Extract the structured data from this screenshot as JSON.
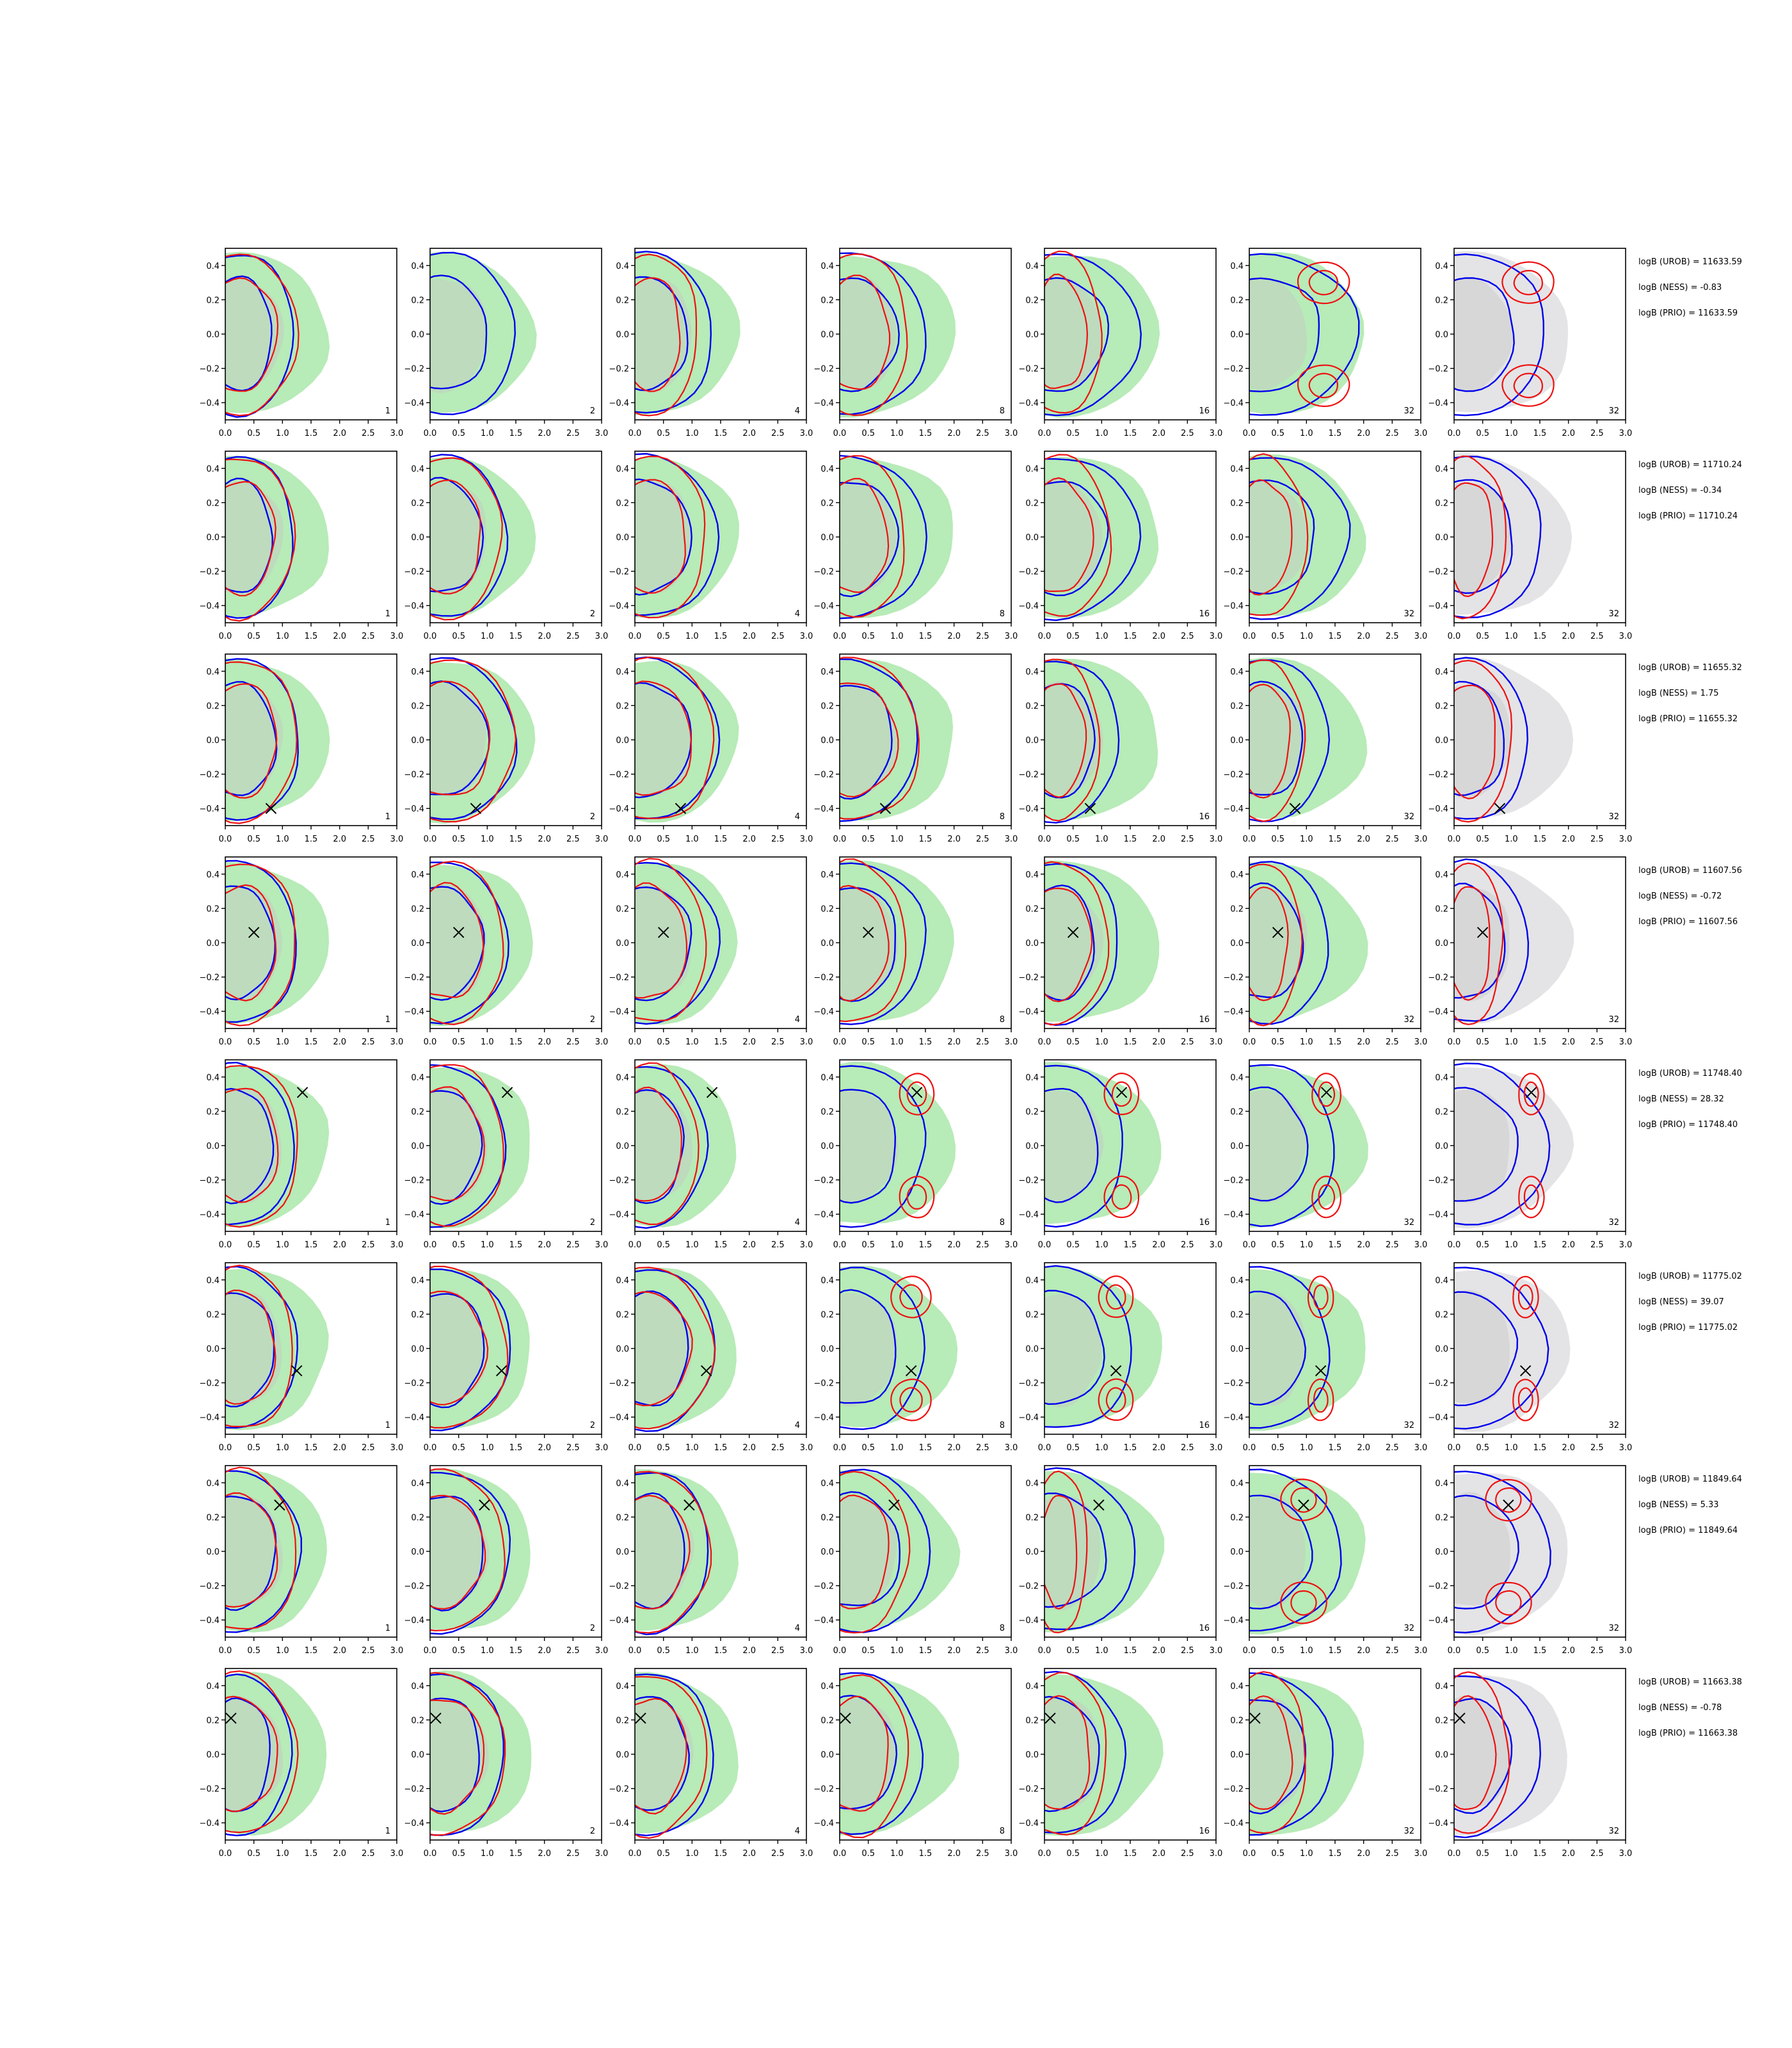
{
  "figure": {
    "rows": [
      {
        "logB_UROB": "logB (UROB) = 11633.59",
        "logB_NESS": "logB (NESS) = -0.83",
        "logB_PRIO": "logB (PRIO) = 11633.59"
      },
      {
        "logB_UROB": "logB (UROB) = 11710.24",
        "logB_NESS": "logB (NESS) = -0.34",
        "logB_PRIO": "logB (PRIO) = 11710.24"
      },
      {
        "logB_UROB": "logB (UROB) = 11655.32",
        "logB_NESS": "logB (NESS) = 1.75",
        "logB_PRIO": "logB (PRIO) = 11655.32"
      },
      {
        "logB_UROB": "logB (UROB) = 11607.56",
        "logB_NESS": "logB (NESS) = -0.72",
        "logB_PRIO": "logB (PRIO) = 11607.56"
      },
      {
        "logB_UROB": "logB (UROB) = 11748.40",
        "logB_NESS": "logB (NESS) = 28.32",
        "logB_PRIO": "logB (PRIO) = 11748.40"
      },
      {
        "logB_UROB": "logB (UROB) = 11775.02",
        "logB_NESS": "logB (NESS) = 39.07",
        "logB_PRIO": "logB (PRIO) = 11775.02"
      },
      {
        "logB_UROB": "logB (UROB) = 11849.64",
        "logB_NESS": "logB (NESS) = 5.33",
        "logB_PRIO": "logB (PRIO) = 11849.64"
      },
      {
        "logB_UROB": "logB (UROB) = 11663.38",
        "logB_NESS": "logB (NESS) = -0.78",
        "logB_PRIO": "logB (PRIO) = 11663.38"
      }
    ]
  },
  "chart_data": {
    "type": "contour",
    "grid": {
      "rows": 8,
      "cols": 7
    },
    "panel_labels": [
      "1",
      "2",
      "4",
      "8",
      "16",
      "32",
      "32"
    ],
    "xlim": [
      0.0,
      3.0
    ],
    "ylim": [
      -0.5,
      0.5
    ],
    "xticks": [
      "0.0",
      "0.5",
      "1.0",
      "1.5",
      "2.0",
      "2.5",
      "3.0"
    ],
    "yticks": [
      "0.4",
      "0.2",
      "0.0",
      "−0.2",
      "−0.4"
    ],
    "xlabel": "",
    "ylabel": "",
    "colors": {
      "green_fill": "#b7ebb7",
      "grey_fill": "#c8c8c8",
      "grey_panel_fill": "#e4e4e6",
      "blue": "#0000ee",
      "red": "#ee1111"
    },
    "markers": [
      null,
      null,
      {
        "x": 0.8,
        "y": -0.4
      },
      {
        "x": 0.5,
        "y": 0.06
      },
      {
        "x": 1.35,
        "y": 0.31
      },
      {
        "x": 1.25,
        "y": -0.13
      },
      {
        "x": 0.95,
        "y": 0.27
      },
      {
        "x": 0.1,
        "y": 0.21
      }
    ],
    "blue_rx": [
      [
        1.0,
        1.3,
        1.15,
        1.3,
        1.45,
        1.7,
        1.4
      ],
      [
        1.0,
        1.15,
        1.25,
        1.3,
        1.45,
        1.55,
        1.35
      ],
      [
        1.1,
        1.3,
        1.25,
        1.15,
        1.1,
        1.2,
        1.1
      ],
      [
        1.05,
        1.15,
        1.25,
        1.3,
        1.1,
        1.2,
        1.1
      ],
      [
        1.0,
        1.1,
        1.05,
        1.3,
        1.2,
        1.3,
        1.45
      ],
      [
        1.05,
        1.2,
        1.2,
        1.3,
        1.35,
        1.2,
        1.4
      ],
      [
        1.1,
        1.2,
        1.1,
        1.4,
        1.4,
        1.4,
        1.45
      ],
      [
        0.95,
        1.1,
        1.2,
        1.25,
        1.2,
        1.25,
        1.3
      ]
    ],
    "red_rx": [
      [
        1.0,
        0.0,
        0.85,
        0.95,
        0.75,
        0.45,
        0.45
      ],
      [
        0.95,
        1.0,
        1.0,
        0.9,
        0.9,
        0.75,
        0.65
      ],
      [
        1.0,
        1.25,
        1.15,
        1.15,
        0.7,
        0.7,
        0.75
      ],
      [
        1.0,
        1.05,
        1.0,
        0.9,
        0.85,
        0.65,
        0.6
      ],
      [
        1.05,
        1.05,
        0.85,
        0.3,
        0.3,
        0.25,
        0.22
      ],
      [
        0.95,
        1.1,
        1.1,
        0.35,
        0.3,
        0.22,
        0.22
      ],
      [
        1.0,
        1.05,
        1.05,
        0.95,
        0.5,
        0.4,
        0.4
      ],
      [
        1.0,
        1.05,
        1.0,
        0.95,
        0.85,
        0.75,
        0.7
      ]
    ]
  }
}
